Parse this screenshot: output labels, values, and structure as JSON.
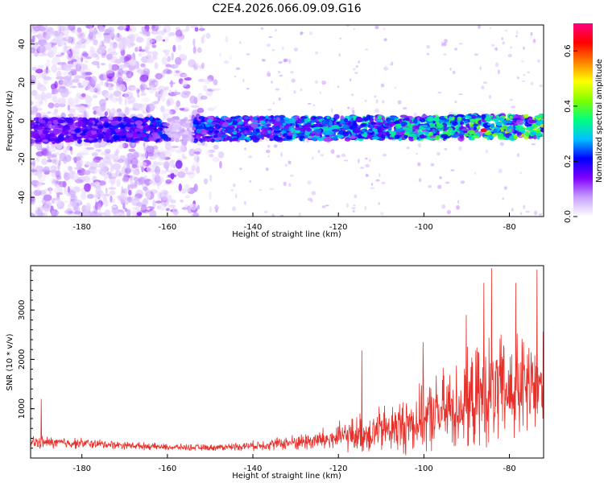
{
  "title": "C2E4.2026.066.09.09.G16",
  "colors": {
    "snr_line": "#e8302a",
    "scatter_purple": "#8a2be2"
  },
  "chart_data": [
    {
      "type": "heatmap",
      "name": "spectrogram",
      "xlabel": "Height of straight line (km)",
      "ylabel": "Frequency (Hz)",
      "xlim": [
        -192,
        -72
      ],
      "ylim": [
        -50,
        50
      ],
      "xticks": [
        -180,
        -160,
        -140,
        -120,
        -100,
        -80
      ],
      "yticks": [
        -40,
        -20,
        0,
        20,
        40
      ],
      "band_center_hz": -5,
      "band_halfwidth_hz": 6,
      "scatter_region_x": [
        -192,
        -145
      ],
      "colorbar": {
        "label": "Normalized spectral amplitude",
        "range": [
          0.0,
          0.7
        ],
        "ticks": [
          0.0,
          0.2,
          0.4,
          0.6
        ],
        "stops": [
          "#ffffff",
          "#c8a0ff",
          "#8000ff",
          "#0000ff",
          "#00c0ff",
          "#00ff80",
          "#80ff00",
          "#ffff00",
          "#ff8000",
          "#ff0000",
          "#ff0080"
        ]
      }
    },
    {
      "type": "line",
      "name": "snr",
      "xlabel": "Height of straight line (km)",
      "ylabel": "SNR (10 * v/v)",
      "xlim": [
        -192,
        -72
      ],
      "ylim": [
        0,
        3900
      ],
      "xticks": [
        -180,
        -160,
        -140,
        -120,
        -100,
        -80
      ],
      "yticks": [
        1000,
        2000,
        3000
      ],
      "envelope": {
        "x": [
          -192,
          -180,
          -170,
          -160,
          -150,
          -140,
          -130,
          -122,
          -118,
          -114,
          -110,
          -105,
          -100,
          -95,
          -90,
          -85,
          -80,
          -76,
          -72
        ],
        "base": [
          320,
          300,
          260,
          220,
          210,
          250,
          320,
          380,
          450,
          500,
          560,
          650,
          800,
          950,
          1100,
          1300,
          1350,
          1400,
          1400
        ],
        "amp": [
          250,
          200,
          150,
          120,
          120,
          180,
          300,
          500,
          600,
          800,
          900,
          1100,
          1300,
          1600,
          1800,
          2100,
          2100,
          2200,
          2100
        ]
      },
      "spikes": [
        {
          "x": -189.5,
          "y": 1200
        },
        {
          "x": -114.5,
          "y": 2180
        },
        {
          "x": -100.2,
          "y": 2350
        },
        {
          "x": -90.1,
          "y": 2900
        },
        {
          "x": -86.0,
          "y": 3550
        },
        {
          "x": -84.2,
          "y": 3850
        },
        {
          "x": -78.5,
          "y": 3550
        },
        {
          "x": -73.5,
          "y": 3820
        }
      ]
    }
  ]
}
